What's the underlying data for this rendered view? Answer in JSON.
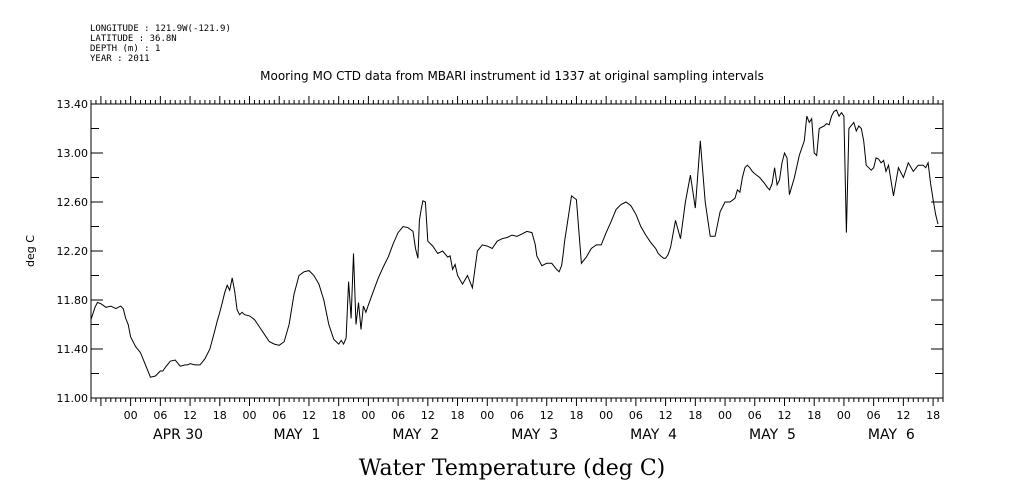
{
  "header": {
    "meta_lines": [
      "LONGITUDE : 121.9W(-121.9)",
      "LATITUDE : 36.8N",
      "DEPTH (m) : 1",
      "YEAR : 2011"
    ],
    "title": "Mooring MO CTD data from MBARI instrument id 1337 at original sampling intervals"
  },
  "chart_data": {
    "type": "line",
    "title": "Mooring MO CTD data from MBARI instrument id 1337 at original sampling intervals",
    "xlabel": "Water Temperature (deg C)",
    "ylabel": "deg C",
    "x_unit": "hours",
    "xlim": [
      -8,
      164
    ],
    "ylim": [
      11.0,
      13.4
    ],
    "yticks": [
      11.0,
      11.4,
      11.8,
      12.2,
      12.6,
      13.0,
      13.4
    ],
    "ytick_labels": [
      "11.00",
      "11.40",
      "11.80",
      "12.20",
      "12.60",
      "13.00",
      "13.40"
    ],
    "hour_ticks": [
      0,
      6,
      12,
      18,
      24,
      30,
      36,
      42,
      48,
      54,
      60,
      66,
      72,
      78,
      84,
      90,
      96,
      102,
      108,
      114,
      120,
      126,
      132,
      138,
      144,
      150,
      156,
      162
    ],
    "hour_tick_labels": [
      "00",
      "06",
      "12",
      "18",
      "00",
      "06",
      "12",
      "18",
      "00",
      "06",
      "12",
      "18",
      "00",
      "06",
      "12",
      "18",
      "00",
      "06",
      "12",
      "18",
      "00",
      "06",
      "12",
      "18",
      "00",
      "06",
      "12",
      "18"
    ],
    "day_labels": [
      {
        "x": 12,
        "label": "APR 30"
      },
      {
        "x": 36,
        "label": "MAY  1"
      },
      {
        "x": 60,
        "label": "MAY  2"
      },
      {
        "x": 84,
        "label": "MAY  3"
      },
      {
        "x": 108,
        "label": "MAY  4"
      },
      {
        "x": 132,
        "label": "MAY  5"
      },
      {
        "x": 156,
        "label": "MAY  6"
      }
    ],
    "series": [
      {
        "x": [
          -8,
          -7.2,
          -6.7,
          -6,
          -5,
          -4,
          -3,
          -2,
          -1.5,
          -1,
          -0.5,
          0,
          1,
          2,
          3,
          4,
          5,
          6,
          6.5,
          7,
          8,
          9,
          10,
          11,
          11.5,
          12,
          13,
          14,
          15,
          16,
          17,
          17.5,
          18,
          18.5,
          19,
          19.5,
          20,
          20.5,
          21,
          21.5,
          22,
          22.5,
          23,
          24,
          25,
          26,
          27,
          28,
          29,
          30,
          31,
          32,
          33,
          34,
          35,
          36,
          37,
          38,
          39,
          40,
          41,
          42,
          42.5,
          43,
          43.5,
          44,
          44.5,
          45,
          45.5,
          46,
          46.5,
          47,
          47.5,
          48,
          49,
          50,
          51,
          52,
          53,
          54,
          55,
          56,
          57,
          57.5,
          58,
          58.3,
          58.7,
          59,
          59.5,
          60,
          61,
          62,
          63,
          64,
          64.5,
          65,
          65.5,
          66,
          67,
          68,
          69,
          70,
          71,
          72,
          73,
          74,
          75,
          76,
          77,
          78,
          79,
          80,
          81,
          81.3,
          81.7,
          82,
          83,
          84,
          85,
          86,
          86.5,
          87,
          87.3,
          87.6,
          88,
          89,
          90,
          91,
          92,
          93,
          94,
          95,
          96,
          97,
          98,
          99,
          100,
          101,
          102,
          103,
          104,
          105,
          106,
          106.5,
          107,
          107.3,
          107.6,
          108,
          108.5,
          109,
          110,
          111,
          112,
          113,
          114,
          115,
          116,
          117,
          118,
          119,
          120,
          121,
          122,
          122.5,
          123,
          123.5,
          124,
          124.5,
          125,
          125.5,
          126,
          127,
          128,
          128.5,
          129,
          129.5,
          130,
          130.5,
          131,
          131.5,
          132,
          132.5,
          133,
          134,
          135,
          136,
          136.5,
          137,
          137.5,
          138,
          138.5,
          139,
          140,
          140.5,
          141,
          141.5,
          142,
          142.5,
          143,
          143.5,
          144,
          144.5,
          145,
          146,
          146.5,
          147,
          147.5,
          148,
          148.5,
          149,
          149.5,
          150,
          150.5,
          151,
          151.5,
          152,
          152.5,
          153,
          154,
          155,
          156,
          157,
          158,
          159,
          160,
          160.5,
          161,
          161.5,
          162,
          162.5,
          163
        ],
        "y": [
          11.64,
          11.74,
          11.78,
          11.77,
          11.74,
          11.75,
          11.73,
          11.75,
          11.73,
          11.65,
          11.6,
          11.5,
          11.42,
          11.37,
          11.27,
          11.17,
          11.18,
          11.22,
          11.22,
          11.25,
          11.3,
          11.31,
          11.26,
          11.27,
          11.27,
          11.28,
          11.27,
          11.27,
          11.32,
          11.4,
          11.55,
          11.63,
          11.7,
          11.78,
          11.86,
          11.92,
          11.88,
          11.98,
          11.87,
          11.72,
          11.68,
          11.7,
          11.68,
          11.67,
          11.64,
          11.58,
          11.52,
          11.46,
          11.44,
          11.43,
          11.46,
          11.6,
          11.85,
          12.0,
          12.03,
          12.04,
          12.0,
          11.93,
          11.8,
          11.6,
          11.48,
          11.44,
          11.47,
          11.44,
          11.49,
          11.95,
          11.65,
          12.18,
          11.6,
          11.78,
          11.56,
          11.75,
          11.7,
          11.76,
          11.87,
          11.98,
          12.07,
          12.15,
          12.26,
          12.35,
          12.4,
          12.39,
          12.36,
          12.22,
          12.14,
          12.45,
          12.55,
          12.61,
          12.6,
          12.28,
          12.24,
          12.18,
          12.2,
          12.15,
          12.16,
          12.05,
          12.09,
          12.0,
          11.93,
          12.0,
          11.9,
          12.2,
          12.25,
          12.24,
          12.22,
          12.28,
          12.3,
          12.31,
          12.33,
          12.32,
          12.34,
          12.36,
          12.35,
          12.31,
          12.25,
          12.16,
          12.08,
          12.1,
          12.1,
          12.05,
          12.03,
          12.08,
          12.17,
          12.28,
          12.38,
          12.65,
          12.62,
          12.1,
          12.15,
          12.22,
          12.25,
          12.25,
          12.35,
          12.44,
          12.54,
          12.58,
          12.6,
          12.57,
          12.5,
          12.4,
          12.33,
          12.27,
          12.22,
          12.18,
          12.16,
          12.15,
          12.14,
          12.14,
          12.17,
          12.23,
          12.45,
          12.3,
          12.6,
          12.82,
          12.55,
          13.1,
          12.6,
          12.32,
          12.32,
          12.52,
          12.6,
          12.6,
          12.63,
          12.7,
          12.68,
          12.8,
          12.88,
          12.9,
          12.88,
          12.85,
          12.83,
          12.8,
          12.75,
          12.72,
          12.7,
          12.75,
          12.88,
          12.74,
          12.78,
          12.92,
          13.0,
          12.96,
          12.66,
          12.8,
          12.98,
          13.1,
          13.3,
          13.25,
          13.28,
          13.0,
          12.98,
          13.2,
          13.22,
          13.24,
          13.23,
          13.3,
          13.34,
          13.35,
          13.3,
          13.33,
          13.3,
          12.35,
          13.2,
          13.25,
          13.18,
          13.22,
          13.2,
          13.1,
          12.9,
          12.88,
          12.86,
          12.88,
          12.96,
          12.95,
          12.92,
          12.94,
          12.85,
          12.9,
          12.65,
          12.88,
          12.8,
          12.92,
          12.85,
          12.9,
          12.9,
          12.88,
          12.92,
          12.75,
          12.62,
          12.5,
          12.42
        ]
      }
    ]
  }
}
